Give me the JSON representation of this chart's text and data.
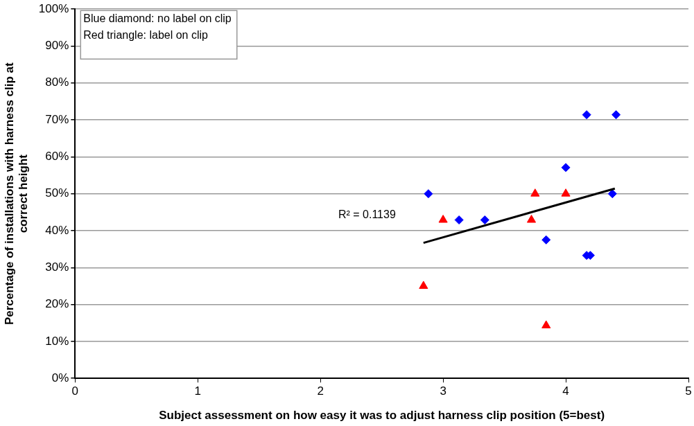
{
  "chart_data": {
    "type": "scatter",
    "xlabel": "Subject assessment on how easy it was to adjust harness clip position (5=best)",
    "ylabel": "Percentage of installations with harness clip at correct height",
    "xlim": [
      0,
      5
    ],
    "xticks": [
      0,
      1,
      2,
      3,
      4,
      5
    ],
    "ylim": [
      0,
      100
    ],
    "yticks": [
      {
        "value": 0,
        "label": "0%"
      },
      {
        "value": 10,
        "label": "10%"
      },
      {
        "value": 20,
        "label": "20%"
      },
      {
        "value": 30,
        "label": "30%"
      },
      {
        "value": 40,
        "label": "40%"
      },
      {
        "value": 50,
        "label": "50%"
      },
      {
        "value": 60,
        "label": "60%"
      },
      {
        "value": 70,
        "label": "70%"
      },
      {
        "value": 80,
        "label": "80%"
      },
      {
        "value": 90,
        "label": "90%"
      },
      {
        "value": 100,
        "label": "100%"
      }
    ],
    "grid": "y",
    "legend": false,
    "series": [
      {
        "marker": "diamond",
        "color": "#0000ff",
        "x": [
          2.88,
          3.13,
          3.34,
          3.84,
          4.0,
          4.17,
          4.41,
          4.38,
          4.17,
          4.2
        ],
        "values": [
          50,
          42.9,
          42.9,
          37.5,
          57.1,
          71.4,
          71.4,
          50,
          33.3,
          33.3
        ]
      },
      {
        "marker": "triangle",
        "color": "#ff0000",
        "x": [
          2.84,
          3.0,
          3.72,
          3.75,
          4.0,
          3.84
        ],
        "values": [
          25,
          42.9,
          42.9,
          50,
          50,
          14.3
        ]
      },
      {
        "type": "line",
        "marker": "none",
        "color": "#000000",
        "x": [
          2.84,
          4.4
        ],
        "values": [
          36.7,
          51.4
        ]
      }
    ],
    "annotations": [
      "Blue diamond: no label on clip",
      "Red triangle: label on clip",
      "R² = 0.1139"
    ]
  }
}
